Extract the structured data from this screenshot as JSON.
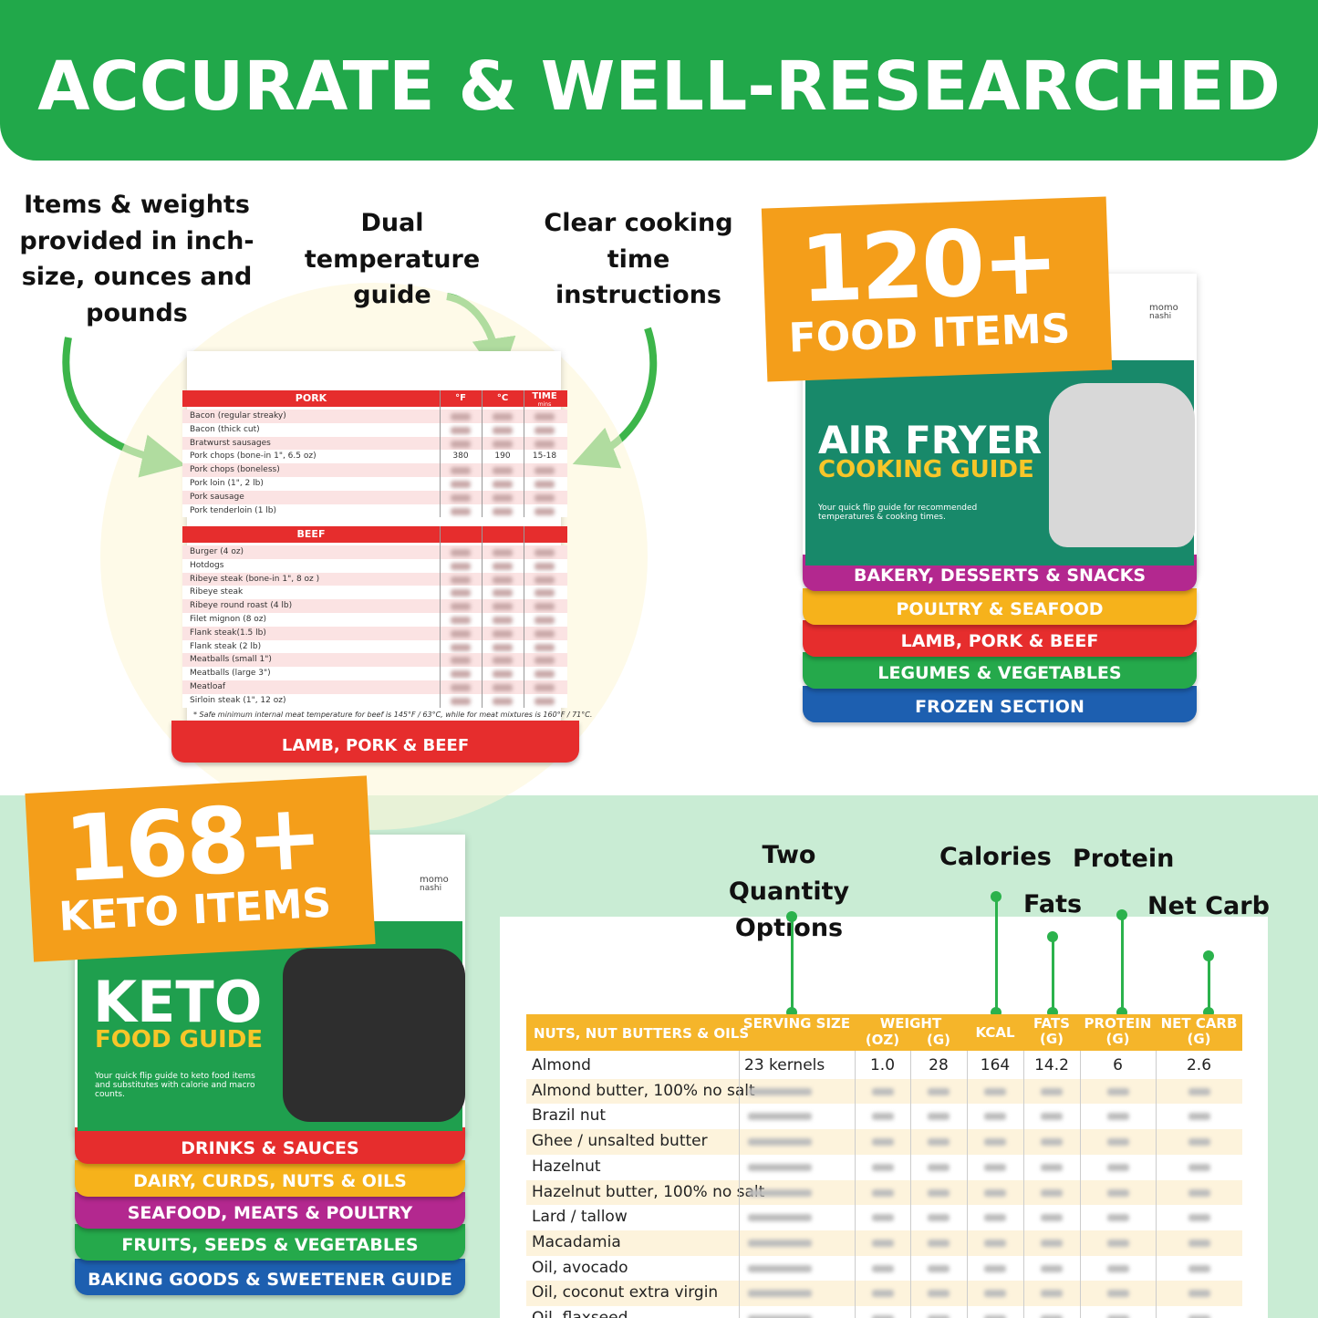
{
  "header": {
    "title": "ACCURATE & WELL-RESEARCHED"
  },
  "callouts": [
    "Items & weights provided in inch-size, ounces and pounds",
    "Dual temperature guide",
    "Clear cooking time instructions"
  ],
  "temp_chart": {
    "pork": {
      "title": "PORK",
      "columns": [
        "°F",
        "°C",
        "TIME"
      ],
      "time_unit": "mins",
      "rows": [
        [
          "Bacon (regular streaky)"
        ],
        [
          "Bacon (thick cut)"
        ],
        [
          "Bratwurst sausages"
        ],
        [
          "Pork chops (bone-in 1\", 6.5 oz)",
          "380",
          "190",
          "15-18"
        ],
        [
          "Pork chops (boneless)"
        ],
        [
          "Pork loin (1\", 2 lb)"
        ],
        [
          "Pork sausage"
        ],
        [
          "Pork tenderloin (1 lb)"
        ]
      ]
    },
    "beef": {
      "title": "BEEF",
      "rows": [
        [
          "Burger (4 oz)"
        ],
        [
          "Hotdogs"
        ],
        [
          "Ribeye steak (bone-in 1\", 8 oz )"
        ],
        [
          "Ribeye steak"
        ],
        [
          "Ribeye round roast (4 lb)"
        ],
        [
          "Filet mignon (8 oz)"
        ],
        [
          "Flank steak(1.5 lb)"
        ],
        [
          "Flank steak (2 lb)"
        ],
        [
          "Meatballs (small 1\")"
        ],
        [
          "Meatballs (large 3\")"
        ],
        [
          "Meatloaf"
        ],
        [
          "Sirloin steak (1\", 12 oz)"
        ]
      ]
    },
    "footnote": "* Safe minimum internal meat temperature for beef is 145°F / 63°C, while for meat mixtures is 160°F / 71°C.",
    "tab": "LAMB, PORK & BEEF"
  },
  "air_fryer": {
    "badge_number": "120+",
    "badge_text": "FOOD ITEMS",
    "brand": [
      "momo",
      "nashi"
    ],
    "title": "AIR FRYER",
    "subtitle": "COOKING GUIDE",
    "tagline": "Your quick flip guide for recommended temperatures & cooking times.",
    "tabs": [
      "BAKERY, DESSERTS & SNACKS",
      "POULTRY & SEAFOOD",
      "LAMB, PORK & BEEF",
      "LEGUMES & VEGETABLES",
      "FROZEN SECTION"
    ]
  },
  "keto": {
    "badge_number": "168+",
    "badge_text": "KETO ITEMS",
    "brand": [
      "momo",
      "nashi"
    ],
    "title": "KETO",
    "subtitle": "FOOD GUIDE",
    "tagline": "Your quick flip guide to keto food items and substitutes with calorie and macro counts.",
    "tabs": [
      "DRINKS & SAUCES",
      "DAIRY, CURDS, NUTS & OILS",
      "SEAFOOD, MEATS & POULTRY",
      "FRUITS, SEEDS & VEGETABLES",
      "BAKING GOODS & SWEETENER GUIDE"
    ]
  },
  "nutrition": {
    "labels": {
      "quantity": "Two Quantity Options",
      "calories": "Calories",
      "protein": "Protein",
      "fats": "Fats",
      "net_carb": "Net Carb"
    },
    "section": "NUTS, NUT BUTTERS & OILS",
    "columns": [
      "SERVING SIZE",
      "WEIGHT",
      "(OZ)",
      "(G)",
      "KCAL",
      "FATS (G)",
      "PROTEIN (G)",
      "NET CARB (G)"
    ],
    "rows": [
      [
        "Almond",
        "23 kernels",
        "1.0",
        "28",
        "164",
        "14.2",
        "6",
        "2.6"
      ],
      [
        "Almond butter, 100% no salt"
      ],
      [
        "Brazil nut"
      ],
      [
        "Ghee / unsalted butter"
      ],
      [
        "Hazelnut"
      ],
      [
        "Hazelnut butter, 100% no salt"
      ],
      [
        "Lard / tallow"
      ],
      [
        "Macadamia"
      ],
      [
        "Oil, avocado"
      ],
      [
        "Oil, coconut extra virgin"
      ],
      [
        "Oil, flaxseed"
      ]
    ]
  }
}
